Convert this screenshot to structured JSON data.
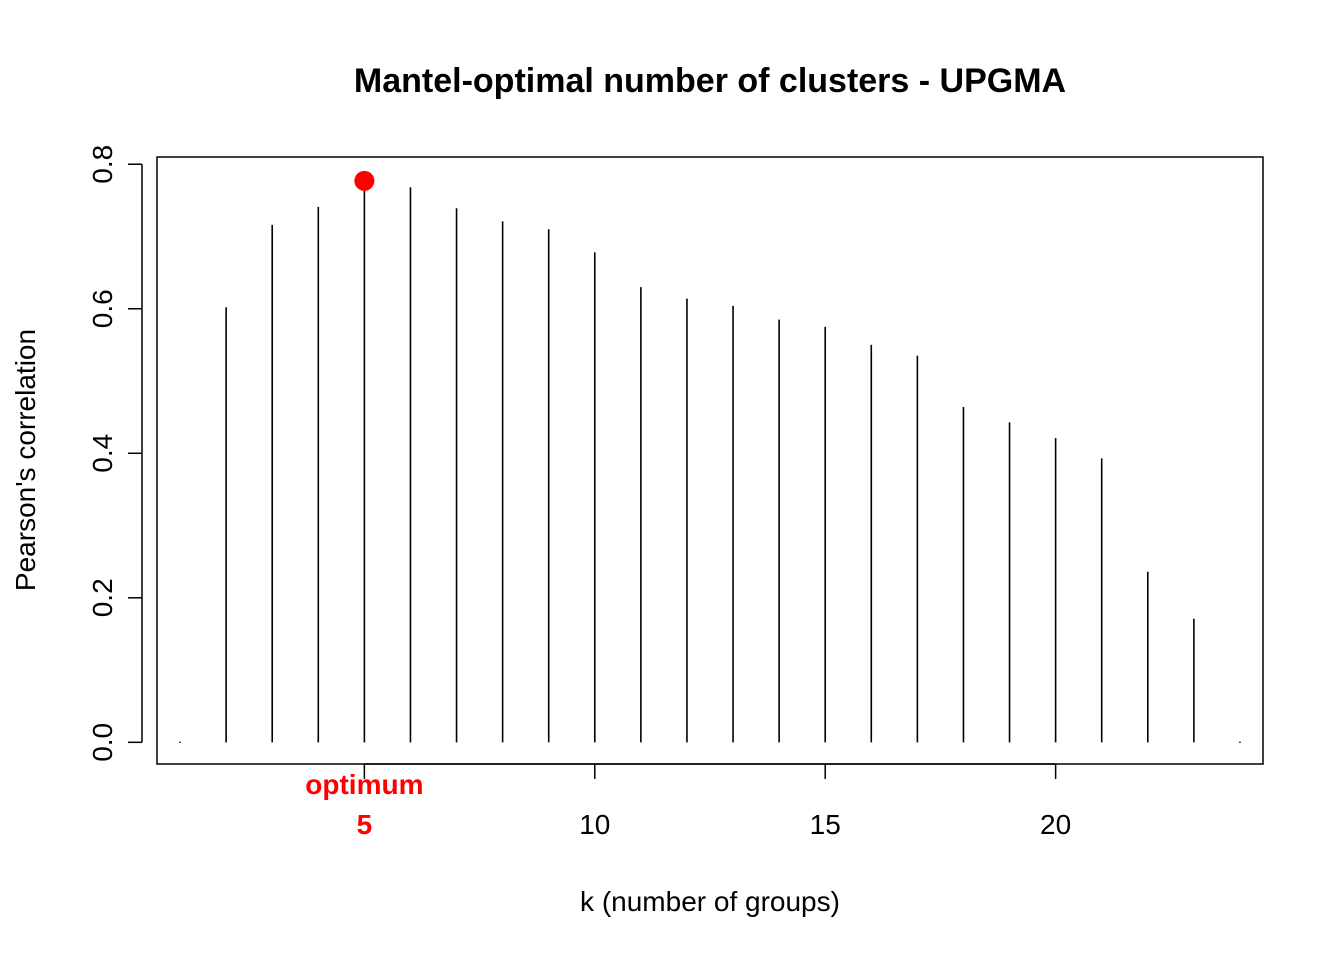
{
  "chart_data": {
    "type": "bar",
    "title": "Mantel-optimal number of clusters - UPGMA",
    "xlabel": "k (number of groups)",
    "ylabel": "Pearson's correlation",
    "x": [
      1,
      2,
      3,
      4,
      5,
      6,
      7,
      8,
      9,
      10,
      11,
      12,
      13,
      14,
      15,
      16,
      17,
      18,
      19,
      20,
      21,
      22,
      23,
      24
    ],
    "values": [
      0.0,
      0.602,
      0.716,
      0.741,
      0.777,
      0.768,
      0.739,
      0.721,
      0.71,
      0.678,
      0.63,
      0.614,
      0.604,
      0.585,
      0.575,
      0.55,
      0.535,
      0.464,
      0.443,
      0.421,
      0.393,
      0.236,
      0.171,
      0.0
    ],
    "xlim": [
      0.5,
      24.5
    ],
    "ylim": [
      -0.03,
      0.81
    ],
    "xticks": [
      10,
      15,
      20
    ],
    "xtick_labels": [
      "10",
      "15",
      "20"
    ],
    "yticks": [
      0.0,
      0.2,
      0.4,
      0.6,
      0.8
    ],
    "ytick_labels": [
      "0.0",
      "0.2",
      "0.4",
      "0.6",
      "0.8"
    ],
    "optimum": {
      "k": 5,
      "value": 0.777,
      "label": "optimum",
      "tick_label": "5",
      "color": "#ff0000"
    },
    "grid": false,
    "line_color": "#000000"
  }
}
